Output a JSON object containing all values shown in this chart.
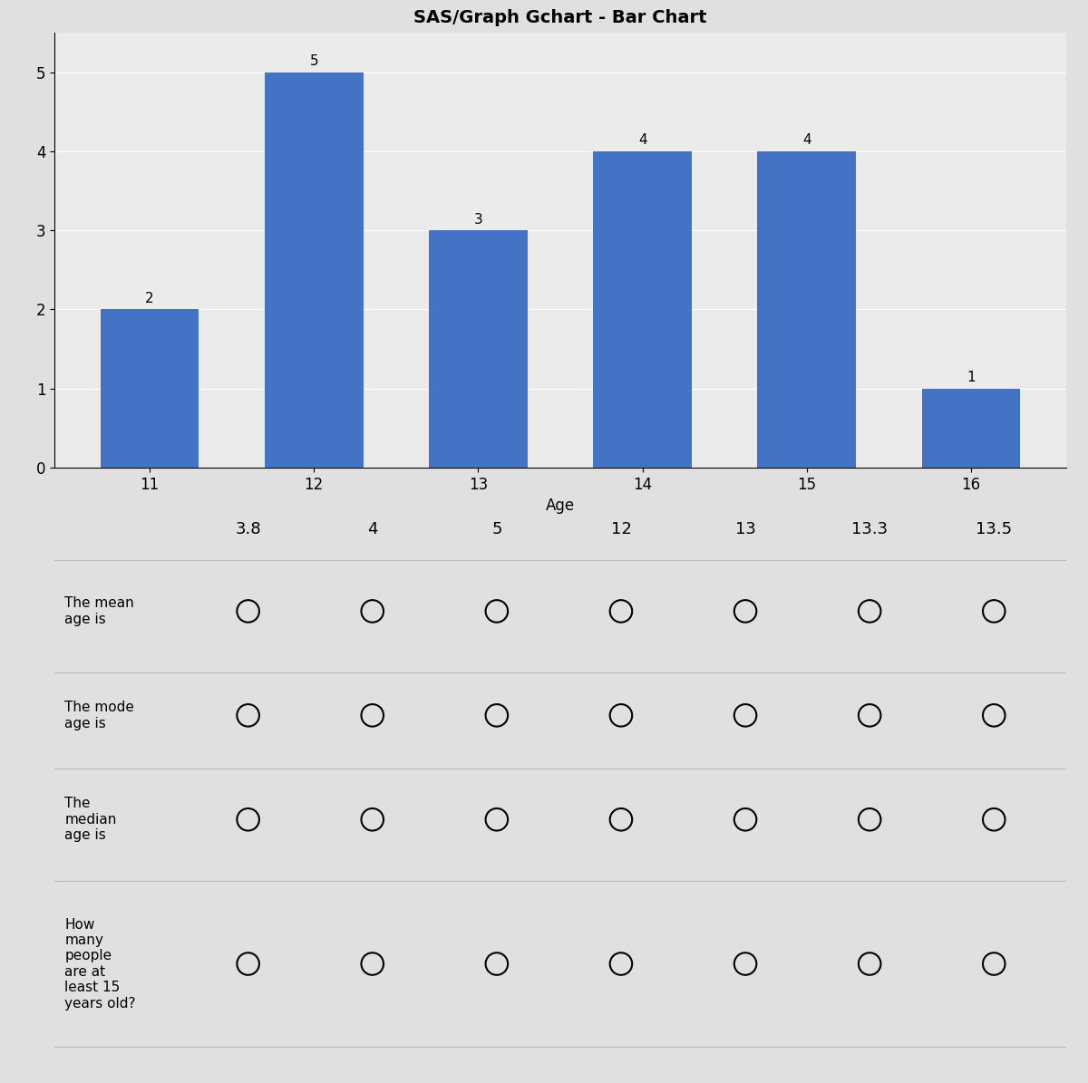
{
  "title": "SAS/Graph Gchart - Bar Chart",
  "bar_categories": [
    11,
    12,
    13,
    14,
    15,
    16
  ],
  "bar_values": [
    2,
    5,
    3,
    4,
    4,
    1
  ],
  "bar_color": "#4472C4",
  "xlabel": "Age",
  "ylabel": "",
  "ylim": [
    0,
    5.5
  ],
  "yticks": [
    0,
    1,
    2,
    3,
    4,
    5
  ],
  "background_color": "#E0E0E0",
  "chart_bg": "#EBEBEB",
  "answer_options": [
    "3.8",
    "4",
    "5",
    "12",
    "13",
    "13.3",
    "13.5"
  ],
  "questions": [
    "The mean\nage is",
    "The mode\nage is",
    "The\nmedian\nage is",
    "How\nmany\npeople\nare at\nleast 15\nyears old?"
  ],
  "title_fontsize": 14,
  "axis_fontsize": 12,
  "bar_label_fontsize": 11
}
